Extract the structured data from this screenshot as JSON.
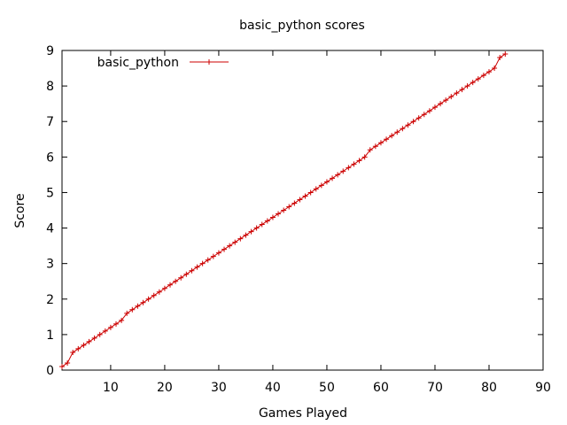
{
  "chart_data": {
    "type": "line",
    "title": "basic_python scores",
    "xlabel": "Games Played",
    "ylabel": "Score",
    "xlim": [
      1,
      90
    ],
    "ylim": [
      0,
      9
    ],
    "xticks": [
      10,
      20,
      30,
      40,
      50,
      60,
      70,
      80,
      90
    ],
    "yticks": [
      0,
      1,
      2,
      3,
      4,
      5,
      6,
      7,
      8,
      9
    ],
    "grid": false,
    "legend_position": "top-left",
    "series": [
      {
        "name": "basic_python",
        "color": "#cc0000",
        "marker": "plus",
        "x": [
          1,
          2,
          3,
          4,
          5,
          6,
          7,
          8,
          9,
          10,
          11,
          12,
          13,
          14,
          15,
          16,
          17,
          18,
          19,
          20,
          21,
          22,
          23,
          24,
          25,
          26,
          27,
          28,
          29,
          30,
          31,
          32,
          33,
          34,
          35,
          36,
          37,
          38,
          39,
          40,
          41,
          42,
          43,
          44,
          45,
          46,
          47,
          48,
          49,
          50,
          51,
          52,
          53,
          54,
          55,
          56,
          57,
          58,
          59,
          60,
          61,
          62,
          63,
          64,
          65,
          66,
          67,
          68,
          69,
          70,
          71,
          72,
          73,
          74,
          75,
          76,
          77,
          78,
          79,
          80,
          81,
          82,
          83
        ],
        "y": [
          0.1,
          0.2,
          0.5,
          0.6,
          0.7,
          0.8,
          0.9,
          1.0,
          1.1,
          1.2,
          1.3,
          1.4,
          1.6,
          1.7,
          1.8,
          1.9,
          2.0,
          2.1,
          2.2,
          2.3,
          2.4,
          2.5,
          2.6,
          2.7,
          2.8,
          2.9,
          3.0,
          3.1,
          3.2,
          3.3,
          3.4,
          3.5,
          3.6,
          3.7,
          3.8,
          3.9,
          4.0,
          4.1,
          4.2,
          4.3,
          4.4,
          4.5,
          4.6,
          4.7,
          4.8,
          4.9,
          5.0,
          5.1,
          5.2,
          5.3,
          5.4,
          5.5,
          5.6,
          5.7,
          5.8,
          5.9,
          6.0,
          6.2,
          6.3,
          6.4,
          6.5,
          6.6,
          6.7,
          6.8,
          6.9,
          7.0,
          7.1,
          7.2,
          7.3,
          7.4,
          7.5,
          7.6,
          7.7,
          7.8,
          7.9,
          8.0,
          8.1,
          8.2,
          8.3,
          8.4,
          8.5,
          8.8,
          8.9
        ]
      }
    ]
  }
}
